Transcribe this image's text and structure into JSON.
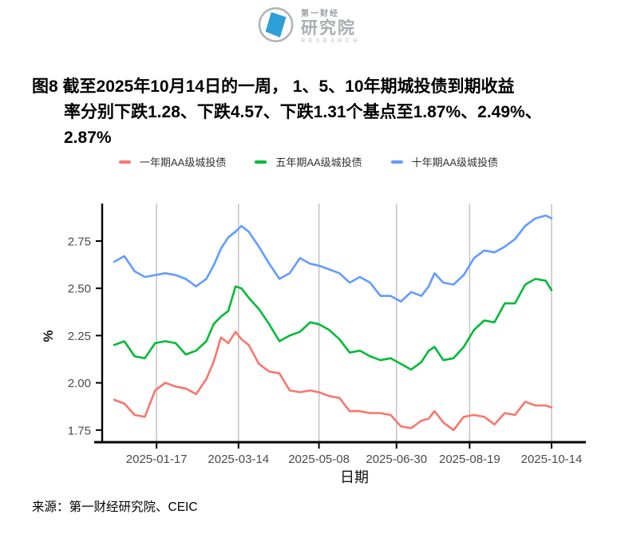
{
  "logo": {
    "cn_small": "第一财经",
    "cn_big": "研究院",
    "en": "RESEARCH"
  },
  "title": {
    "line1": "图8  截至2025年10月14日的一周， 1、5、10年期城投债到期收益",
    "line2": "率分别下跌1.28、下跌4.57、下跌1.31个基点至1.87%、2.49%、",
    "line3": "2.87%"
  },
  "source": "来源：第一财经研究院、CEIC",
  "chart_data": {
    "type": "line",
    "title": "截至2025年10月14日的一周，1、5、10年期城投债到期收益率分别下跌1.28、下跌4.57、下跌1.31个基点至1.87%、2.49%、2.87%",
    "xlabel": "日期",
    "ylabel": "%",
    "legend_position": "top",
    "grid": "vertical-only",
    "grid_color": "#c6c6c6",
    "axis_color": "#000000",
    "tick_label_color": "#4a4a4a",
    "ylim": [
      1.69,
      2.95
    ],
    "xlim": [
      "2024-12-11",
      "2025-11-06"
    ],
    "y_ticks": [
      "1.75",
      "2.00",
      "2.25",
      "2.50",
      "2.75"
    ],
    "x_ticks": [
      "2025-01-17",
      "2025-03-14",
      "2025-05-08",
      "2025-06-30",
      "2025-08-19",
      "2025-10-14"
    ],
    "dates": [
      "2024-12-19",
      "2024-12-26",
      "2025-01-02",
      "2025-01-09",
      "2025-01-16",
      "2025-01-23",
      "2025-01-30",
      "2025-02-06",
      "2025-02-13",
      "2025-02-20",
      "2025-02-25",
      "2025-03-02",
      "2025-03-07",
      "2025-03-12",
      "2025-03-16",
      "2025-03-21",
      "2025-03-28",
      "2025-04-04",
      "2025-04-11",
      "2025-04-18",
      "2025-04-25",
      "2025-05-02",
      "2025-05-08",
      "2025-05-15",
      "2025-05-22",
      "2025-05-29",
      "2025-06-05",
      "2025-06-12",
      "2025-06-19",
      "2025-06-26",
      "2025-07-03",
      "2025-07-10",
      "2025-07-17",
      "2025-07-22",
      "2025-07-26",
      "2025-08-01",
      "2025-08-08",
      "2025-08-15",
      "2025-08-22",
      "2025-08-29",
      "2025-09-05",
      "2025-09-12",
      "2025-09-19",
      "2025-09-26",
      "2025-10-03",
      "2025-10-10",
      "2025-10-14"
    ],
    "series": [
      {
        "name": "一年期AA级城投债",
        "color": "#F8766D",
        "final_value": 1.87,
        "weekly_change_bp": -1.28,
        "values": [
          1.91,
          1.89,
          1.83,
          1.82,
          1.96,
          2.0,
          1.98,
          1.97,
          1.94,
          2.02,
          2.11,
          2.24,
          2.21,
          2.27,
          2.23,
          2.2,
          2.1,
          2.06,
          2.05,
          1.96,
          1.95,
          1.96,
          1.95,
          1.93,
          1.92,
          1.85,
          1.85,
          1.84,
          1.84,
          1.83,
          1.77,
          1.76,
          1.8,
          1.81,
          1.85,
          1.79,
          1.75,
          1.82,
          1.83,
          1.82,
          1.78,
          1.84,
          1.83,
          1.9,
          1.88,
          1.88,
          1.87
        ]
      },
      {
        "name": "五年期AA级城投债",
        "color": "#00BA38",
        "final_value": 2.49,
        "weekly_change_bp": -4.57,
        "values": [
          2.2,
          2.22,
          2.14,
          2.13,
          2.21,
          2.22,
          2.21,
          2.15,
          2.17,
          2.22,
          2.31,
          2.35,
          2.38,
          2.51,
          2.5,
          2.45,
          2.39,
          2.31,
          2.22,
          2.25,
          2.27,
          2.32,
          2.31,
          2.28,
          2.23,
          2.16,
          2.17,
          2.14,
          2.12,
          2.13,
          2.1,
          2.07,
          2.11,
          2.17,
          2.19,
          2.12,
          2.13,
          2.19,
          2.28,
          2.33,
          2.32,
          2.42,
          2.42,
          2.52,
          2.55,
          2.54,
          2.49
        ]
      },
      {
        "name": "十年期AA级城投债",
        "color": "#619CFF",
        "final_value": 2.87,
        "weekly_change_bp": -1.31,
        "values": [
          2.64,
          2.67,
          2.59,
          2.56,
          2.57,
          2.58,
          2.57,
          2.55,
          2.51,
          2.55,
          2.62,
          2.71,
          2.77,
          2.8,
          2.83,
          2.8,
          2.72,
          2.63,
          2.55,
          2.58,
          2.66,
          2.63,
          2.62,
          2.6,
          2.58,
          2.53,
          2.56,
          2.53,
          2.46,
          2.46,
          2.43,
          2.48,
          2.46,
          2.51,
          2.58,
          2.53,
          2.52,
          2.57,
          2.66,
          2.7,
          2.69,
          2.72,
          2.76,
          2.83,
          2.87,
          2.885,
          2.87
        ]
      }
    ]
  }
}
